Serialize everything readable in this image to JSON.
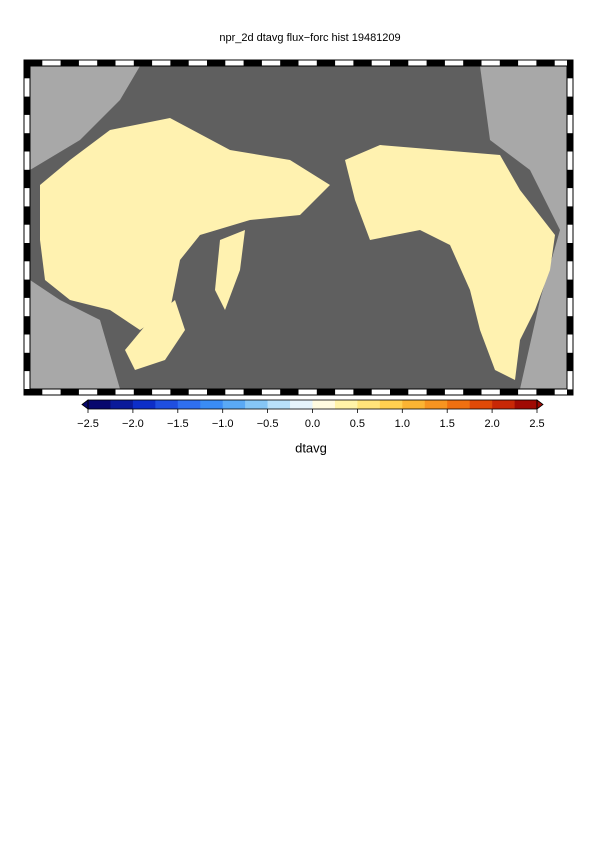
{
  "title": "npr_2d dtavg flux−forc hist 19481209",
  "colorbar": {
    "label": "dtavg",
    "lim": [
      -2.5,
      2.5
    ],
    "ticks": [
      {
        "value": -2.5,
        "label": "−2.5"
      },
      {
        "value": -2,
        "label": "−2.0"
      },
      {
        "value": -1.5,
        "label": "−1.5"
      },
      {
        "value": -1,
        "label": "−1.0"
      },
      {
        "value": -0.5,
        "label": "−0.5"
      },
      {
        "value": 0,
        "label": "0.0"
      },
      0.5,
      {
        "value": 1,
        "label": "1.0"
      },
      1.5,
      {
        "value": 2,
        "label": "2.0"
      },
      2.5
    ],
    "colors": [
      "#08086e",
      "#0a1a9a",
      "#0d2ec8",
      "#1f4fe0",
      "#2f6ff0",
      "#3a8cf5",
      "#5aa9f5",
      "#86c6f6",
      "#b8e0fa",
      "#e6f4fc",
      "#fffbe0",
      "#fff3a8",
      "#ffe47a",
      "#ffd050",
      "#fbb433",
      "#f79420",
      "#ef7010",
      "#e04a08",
      "#c82806",
      "#a00a04"
    ]
  }
}
